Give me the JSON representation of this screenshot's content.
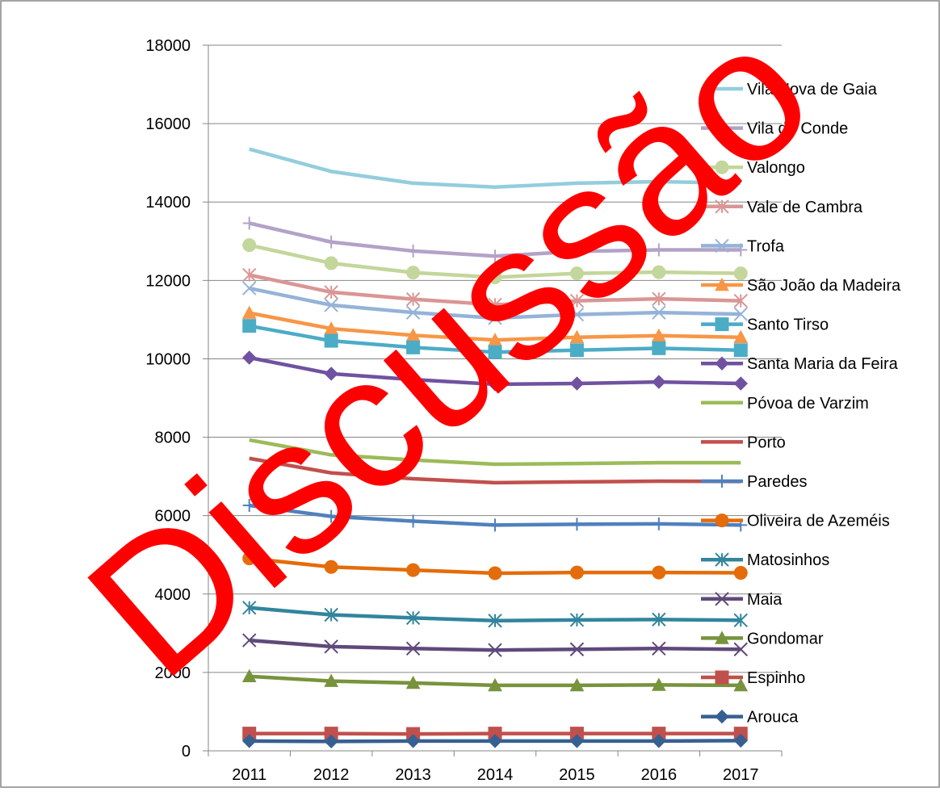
{
  "watermark": "Discussão",
  "chart_data": {
    "type": "line",
    "title": "",
    "xlabel": "",
    "ylabel": "",
    "categories": [
      "2011",
      "2012",
      "2013",
      "2014",
      "2015",
      "2016",
      "2017"
    ],
    "ylim": [
      0,
      18000
    ],
    "yticks": [
      0,
      2000,
      4000,
      6000,
      8000,
      10000,
      12000,
      14000,
      16000,
      18000
    ],
    "grid": "horizontal",
    "legend_position": "right",
    "series": [
      {
        "name": "Vila Nova de Gaia",
        "color": "#93CDDD",
        "marker": "none",
        "values": [
          15350,
          14780,
          14480,
          14380,
          14480,
          14520,
          14480
        ]
      },
      {
        "name": "Vila do Conde",
        "color": "#B3A2C7",
        "marker": "plus",
        "values": [
          13460,
          12980,
          12750,
          12620,
          12740,
          12780,
          12780
        ]
      },
      {
        "name": "Valongo",
        "color": "#C3D69B",
        "marker": "circle",
        "values": [
          12900,
          12440,
          12200,
          12080,
          12180,
          12210,
          12180
        ]
      },
      {
        "name": "Vale de Cambra",
        "color": "#D99694",
        "marker": "asterisk",
        "values": [
          12140,
          11700,
          11520,
          11380,
          11480,
          11530,
          11480
        ]
      },
      {
        "name": "Trofa",
        "color": "#95B3D7",
        "marker": "x",
        "values": [
          11800,
          11370,
          11180,
          11040,
          11130,
          11180,
          11140
        ]
      },
      {
        "name": "São João da Madeira",
        "color": "#F79646",
        "marker": "triangle",
        "values": [
          11170,
          10770,
          10600,
          10480,
          10550,
          10590,
          10550
        ]
      },
      {
        "name": "Santo Tirso",
        "color": "#4BACC6",
        "marker": "square",
        "values": [
          10840,
          10460,
          10290,
          10170,
          10220,
          10270,
          10220
        ]
      },
      {
        "name": "Santa Maria da Feira",
        "color": "#7052A0",
        "marker": "diamond",
        "values": [
          10030,
          9620,
          9470,
          9350,
          9370,
          9410,
          9370
        ]
      },
      {
        "name": "Póvoa de Varzim",
        "color": "#9BBB59",
        "marker": "none",
        "values": [
          7930,
          7550,
          7420,
          7310,
          7330,
          7350,
          7350
        ]
      },
      {
        "name": "Porto",
        "color": "#C0504D",
        "marker": "none",
        "values": [
          7460,
          7090,
          6940,
          6840,
          6860,
          6880,
          6870
        ]
      },
      {
        "name": "Paredes",
        "color": "#4F81BD",
        "marker": "plus",
        "values": [
          6260,
          5980,
          5860,
          5760,
          5780,
          5790,
          5760
        ]
      },
      {
        "name": "Oliveira de Azeméis",
        "color": "#E46C0A",
        "marker": "circle",
        "values": [
          4910,
          4690,
          4610,
          4530,
          4550,
          4550,
          4540
        ]
      },
      {
        "name": "Matosinhos",
        "color": "#31859C",
        "marker": "asterisk",
        "values": [
          3650,
          3470,
          3390,
          3320,
          3340,
          3350,
          3330
        ]
      },
      {
        "name": "Maia",
        "color": "#5F497A",
        "marker": "x",
        "values": [
          2820,
          2660,
          2610,
          2570,
          2590,
          2610,
          2590
        ]
      },
      {
        "name": "Gondomar",
        "color": "#77933C",
        "marker": "triangle",
        "values": [
          1900,
          1780,
          1730,
          1670,
          1670,
          1680,
          1670
        ]
      },
      {
        "name": "Espinho",
        "color": "#C0504D",
        "marker": "square",
        "values": [
          440,
          440,
          430,
          440,
          440,
          440,
          440
        ]
      },
      {
        "name": "Arouca",
        "color": "#376092",
        "marker": "diamond",
        "values": [
          250,
          240,
          250,
          250,
          250,
          250,
          260
        ]
      }
    ]
  }
}
